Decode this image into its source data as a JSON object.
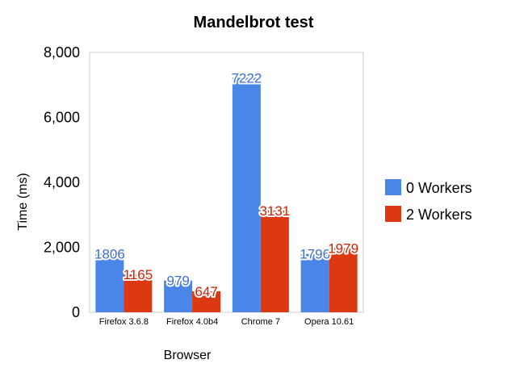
{
  "chart_data": {
    "type": "bar",
    "title": "Mandelbrot test",
    "xlabel": "Browser",
    "ylabel": "Time (ms)",
    "categories": [
      "Firefox 3.6.8",
      "Firefox 4.0b4",
      "Chrome 7",
      "Opera 10.61"
    ],
    "series": [
      {
        "name": "0 Workers",
        "color": "#4a86e8",
        "label_color": "#3d6fd0",
        "values": [
          1806,
          979,
          7222,
          1796
        ]
      },
      {
        "name": "2 Workers",
        "color": "#dc3912",
        "label_color": "#cc2200",
        "values": [
          1165,
          647,
          3131,
          1979
        ]
      }
    ],
    "ylim": [
      0,
      8000
    ],
    "yticks": [
      {
        "value": 0,
        "label": "0"
      },
      {
        "value": 2000,
        "label": "2,000"
      },
      {
        "value": 4000,
        "label": "4,000"
      },
      {
        "value": 6000,
        "label": "6,000"
      },
      {
        "value": 8000,
        "label": "8,000"
      }
    ],
    "grid": false,
    "legend": "right"
  }
}
